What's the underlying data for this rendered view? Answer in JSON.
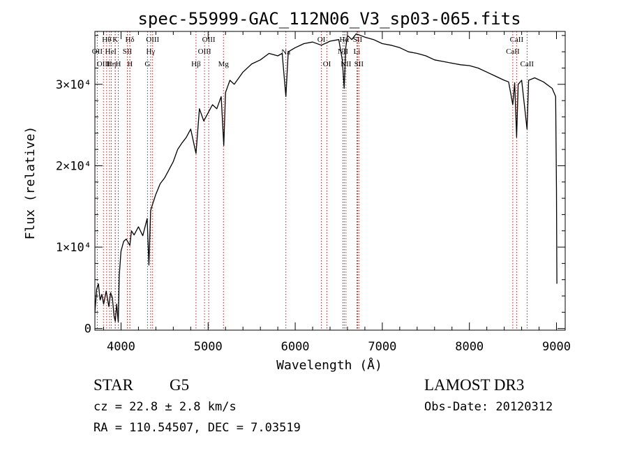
{
  "chart_data": {
    "type": "line",
    "title": "spec-55999-GAC_112N06_V3_sp03-065.fits",
    "xlabel": "Wavelength (Å)",
    "ylabel": "Flux (relative)",
    "xlim": [
      3700,
      9100
    ],
    "ylim": [
      -200,
      36500
    ],
    "x_ticks": [
      4000,
      5000,
      6000,
      7000,
      8000,
      9000
    ],
    "y_ticks": [
      {
        "value": 0,
        "label": "0"
      },
      {
        "value": 10000,
        "label": "1×10⁴"
      },
      {
        "value": 20000,
        "label": "2×10⁴"
      },
      {
        "value": 30000,
        "label": "3×10⁴"
      }
    ],
    "line_color": "#000000",
    "line_marker_color": "#b00000",
    "series": [
      {
        "name": "flux",
        "x": [
          3700,
          3720,
          3740,
          3760,
          3780,
          3800,
          3830,
          3860,
          3880,
          3900,
          3920,
          3934,
          3950,
          3968,
          3980,
          4000,
          4030,
          4060,
          4101,
          4120,
          4150,
          4200,
          4250,
          4300,
          4320,
          4340,
          4360,
          4400,
          4450,
          4500,
          4550,
          4600,
          4650,
          4700,
          4750,
          4800,
          4861,
          4900,
          4950,
          5000,
          5050,
          5100,
          5150,
          5180,
          5200,
          5250,
          5300,
          5400,
          5500,
          5600,
          5700,
          5800,
          5850,
          5893,
          5920,
          6000,
          6100,
          6200,
          6300,
          6400,
          6500,
          6540,
          6563,
          6580,
          6600,
          6650,
          6700,
          6800,
          6900,
          7000,
          7100,
          7200,
          7300,
          7400,
          7500,
          7600,
          7700,
          7800,
          7900,
          8000,
          8100,
          8200,
          8300,
          8400,
          8450,
          8498,
          8520,
          8542,
          8560,
          8600,
          8662,
          8680,
          8750,
          8850,
          8950,
          8990,
          9000,
          9005
        ],
        "y": [
          2000,
          4800,
          5500,
          3500,
          4200,
          3000,
          4600,
          2700,
          4400,
          3800,
          1500,
          900,
          3000,
          800,
          6500,
          9500,
          10700,
          11000,
          10200,
          12000,
          11500,
          12500,
          11400,
          13500,
          7800,
          14500,
          15200,
          16500,
          17800,
          18500,
          19500,
          20500,
          22000,
          22800,
          23500,
          24500,
          21500,
          27000,
          25500,
          26500,
          27500,
          27000,
          28500,
          22500,
          29000,
          30500,
          30000,
          31500,
          32500,
          33000,
          33800,
          33500,
          33800,
          28500,
          34000,
          34500,
          35000,
          35200,
          34800,
          35300,
          35500,
          33000,
          29500,
          34500,
          36000,
          35500,
          36200,
          35800,
          35500,
          35000,
          34800,
          34500,
          34000,
          33800,
          33500,
          33000,
          32800,
          32600,
          32400,
          32300,
          32000,
          31500,
          31000,
          30500,
          30300,
          27500,
          30200,
          23500,
          30000,
          30500,
          24500,
          30500,
          30800,
          30300,
          29500,
          28500,
          17000,
          5500
        ]
      }
    ],
    "line_markers": [
      {
        "wavelength": 3727,
        "label": "OII",
        "row": 1
      },
      {
        "wavelength": 3798,
        "label": "OIII",
        "row": 2
      },
      {
        "wavelength": 3835,
        "label": "Hθ",
        "row": 0
      },
      {
        "wavelength": 3868,
        "label": "He",
        "row": 1
      },
      {
        "wavelength": 3889,
        "label": "Hη",
        "row": 2
      },
      {
        "wavelength": 3934,
        "label": "K",
        "row": 0
      },
      {
        "wavelength": 3933,
        "label": "I",
        "row": 1
      },
      {
        "wavelength": 3968,
        "label": "H",
        "row": 2
      },
      {
        "wavelength": 4072,
        "label": "SII",
        "row": 1
      },
      {
        "wavelength": 4101,
        "label": "Hδ",
        "row": 0
      },
      {
        "wavelength": 4102,
        "label": "H",
        "row": 2
      },
      {
        "wavelength": 4304,
        "label": "G",
        "row": 2
      },
      {
        "wavelength": 4340,
        "label": "Hγ",
        "row": 1
      },
      {
        "wavelength": 4363,
        "label": "OIII",
        "row": 0
      },
      {
        "wavelength": 4861,
        "label": "Hβ",
        "row": 2
      },
      {
        "wavelength": 4959,
        "label": "OIII",
        "row": 1
      },
      {
        "wavelength": 5007,
        "label": "OIII",
        "row": 0
      },
      {
        "wavelength": 5176,
        "label": "Mg",
        "row": 2
      },
      {
        "wavelength": 5893,
        "label": "Na",
        "row": 0.9
      },
      {
        "wavelength": 6300,
        "label": "OI",
        "row": 0
      },
      {
        "wavelength": 6364,
        "label": "OI",
        "row": 2
      },
      {
        "wavelength": 6548,
        "label": "NII",
        "row": 1
      },
      {
        "wavelength": 6563,
        "label": "Hα",
        "row": 0
      },
      {
        "wavelength": 6583,
        "label": "NII",
        "row": 2
      },
      {
        "wavelength": 6716,
        "label": "SII",
        "row": 0
      },
      {
        "wavelength": 6708,
        "label": "Li",
        "row": 1
      },
      {
        "wavelength": 6731,
        "label": "SII",
        "row": 2
      },
      {
        "wavelength": 8498,
        "label": "CaII",
        "row": 1
      },
      {
        "wavelength": 8542,
        "label": "CaII",
        "row": 0
      },
      {
        "wavelength": 8662,
        "label": "CaII",
        "row": 2
      }
    ]
  },
  "info": {
    "class_label": "STAR",
    "subclass_label": "G5",
    "velocity": "cz = 22.8 ± 2.8 km/s",
    "coordinates": "RA = 110.54507, DEC =   7.03519",
    "survey": "LAMOST DR3",
    "obs_date": "Obs-Date: 20120312"
  }
}
